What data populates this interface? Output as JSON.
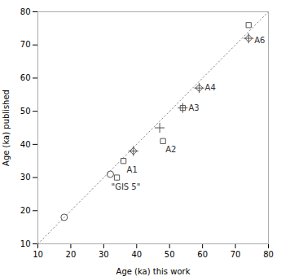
{
  "chart_data": {
    "type": "scatter",
    "title": "",
    "xlabel": "Age (ka) this work",
    "ylabel": "Age (ka) published",
    "xlim": [
      10,
      80
    ],
    "ylim": [
      10,
      80
    ],
    "xticks": [
      10,
      20,
      30,
      40,
      50,
      60,
      70,
      80
    ],
    "yticks": [
      10,
      20,
      30,
      40,
      50,
      60,
      70,
      80
    ],
    "grid": false,
    "series": [
      {
        "type": "line",
        "line_style": "dotted",
        "color": "#888888",
        "x": [
          10,
          80
        ],
        "values": [
          10,
          80
        ]
      },
      {
        "type": "scatter",
        "marker": "circle",
        "color": "#555555",
        "x": [
          18,
          32
        ],
        "values": [
          18,
          31
        ]
      },
      {
        "type": "scatter",
        "marker": "square",
        "color": "#555555",
        "x": [
          34,
          36,
          48,
          54,
          74
        ],
        "values": [
          30,
          35,
          41,
          51,
          76
        ]
      },
      {
        "type": "scatter",
        "marker": "diamond",
        "color": "#555555",
        "x": [
          39,
          59,
          74
        ],
        "values": [
          38,
          57,
          72
        ]
      },
      {
        "type": "scatter",
        "marker": "plus",
        "color": "#555555",
        "x": [
          39,
          47,
          54,
          59,
          74
        ],
        "values": [
          38,
          45,
          51,
          57,
          72
        ]
      }
    ],
    "annotations": [
      {
        "text": "\"GIS 5\"",
        "x": 34,
        "y": 30
      },
      {
        "text": "A1",
        "x": 36,
        "y": 35
      },
      {
        "text": "A2",
        "x": 48,
        "y": 41
      },
      {
        "text": "A3",
        "x": 54,
        "y": 51
      },
      {
        "text": "A4",
        "x": 59,
        "y": 57
      },
      {
        "text": "A6",
        "x": 74,
        "y": 72
      }
    ]
  }
}
